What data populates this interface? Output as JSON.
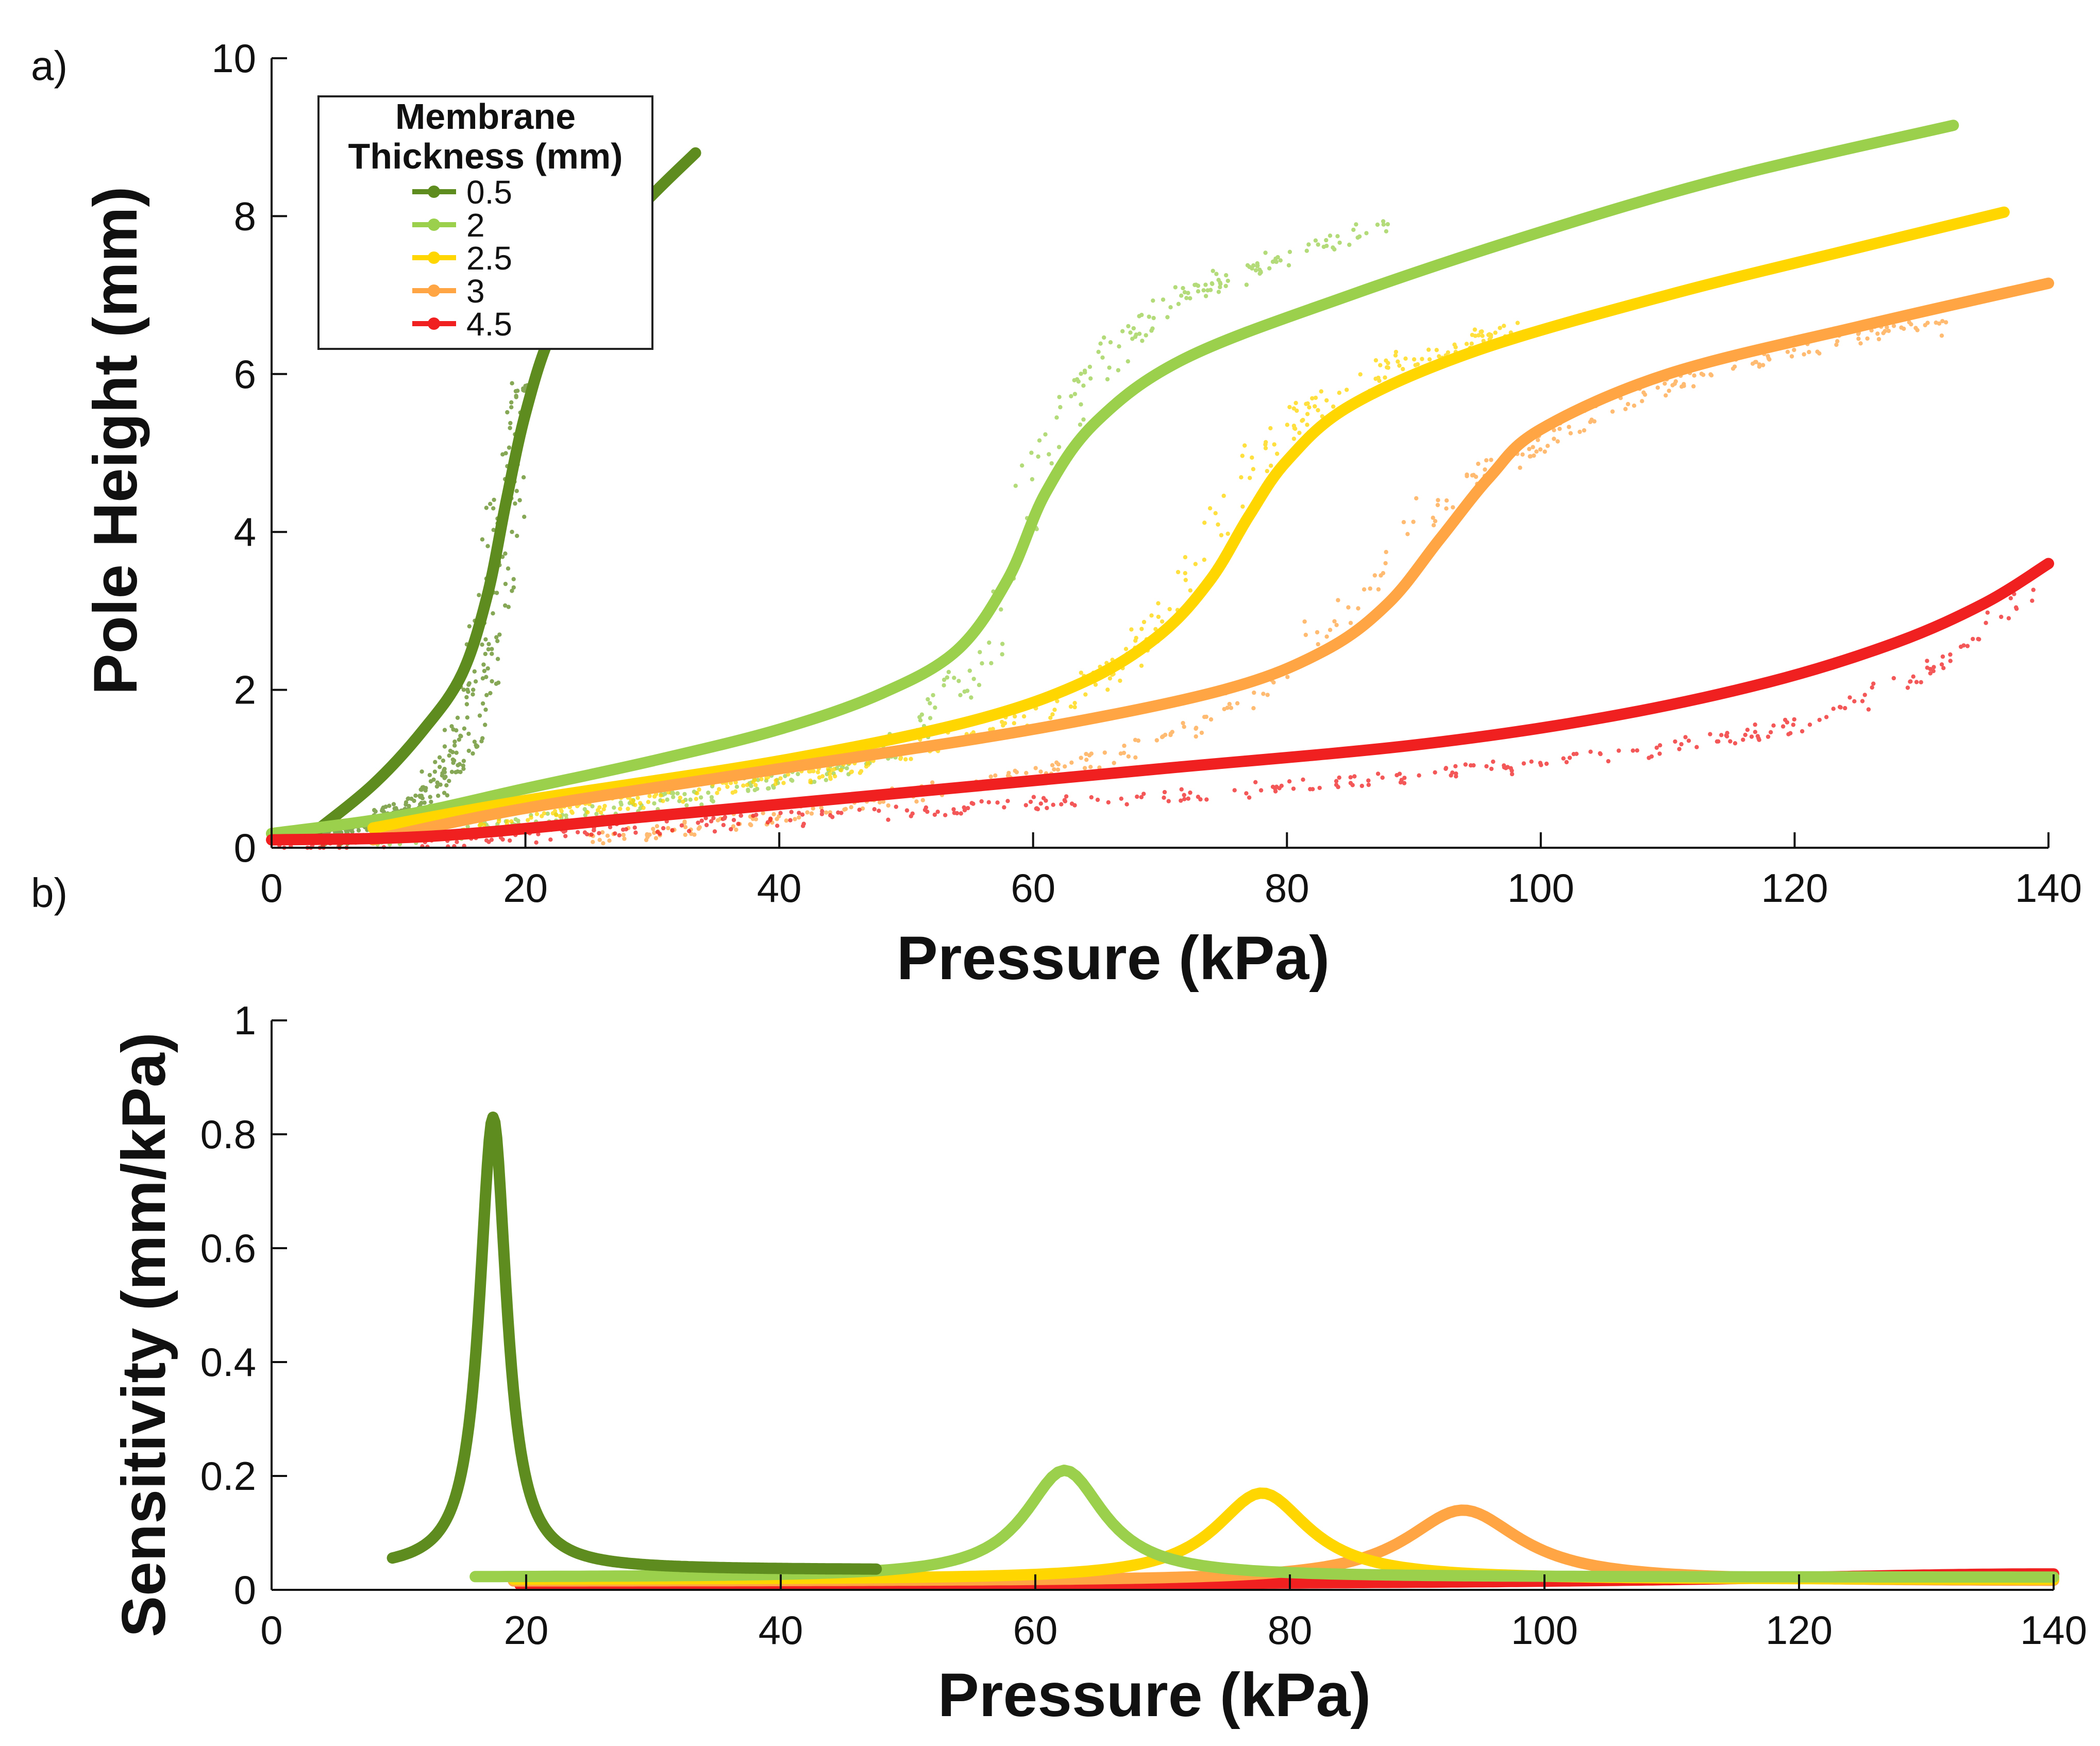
{
  "chart_data": [
    {
      "panel": "a)",
      "type": "line",
      "xlabel": "Pressure (kPa)",
      "ylabel": "Pole Height (mm)",
      "xlim": [
        0,
        140
      ],
      "ylim": [
        0,
        10
      ],
      "xticks": [
        "0",
        "20",
        "40",
        "60",
        "80",
        "100",
        "120",
        "140"
      ],
      "yticks": [
        "0",
        "2",
        "4",
        "6",
        "8",
        "10"
      ],
      "legend": {
        "title_line1": "Membrane",
        "title_line2": "Thickness (mm)",
        "position": "top-left"
      },
      "series": [
        {
          "name": "0.5",
          "color": "#5e8c1e",
          "model": {
            "x": [
              3,
              8,
              12,
              15,
              17,
              18.5,
              20,
              22,
              25,
              29,
              33.4
            ],
            "y": [
              0.15,
              0.8,
              1.5,
              2.2,
              3.2,
              4.4,
              5.5,
              6.5,
              7.3,
              8.1,
              8.8
            ]
          },
          "measured": {
            "x": [
              4,
              8,
              12,
              14,
              15.5,
              16.5,
              17.5,
              18.2,
              19,
              19.6,
              20.3
            ],
            "y": [
              0.1,
              0.3,
              0.6,
              1.0,
              1.6,
              2.3,
              3.2,
              4.0,
              4.8,
              5.3,
              5.8
            ]
          }
        },
        {
          "name": "2",
          "color": "#9bd04d",
          "model": {
            "x": [
              0,
              10,
              20,
              30,
              40,
              48,
              54,
              58,
              61,
              65,
              72,
              85,
              100,
              115,
              132.5
            ],
            "y": [
              0.18,
              0.4,
              0.75,
              1.1,
              1.5,
              1.95,
              2.5,
              3.4,
              4.5,
              5.4,
              6.2,
              7.0,
              7.8,
              8.5,
              9.15
            ]
          },
          "measured": {
            "x": [
              8,
              20,
              35,
              45,
              52,
              56,
              58,
              60,
              63,
              67,
              72,
              80,
              88
            ],
            "y": [
              0.1,
              0.3,
              0.7,
              1.0,
              1.6,
              2.4,
              3.5,
              4.6,
              5.7,
              6.4,
              7.0,
              7.5,
              7.9
            ]
          }
        },
        {
          "name": "2.5",
          "color": "#ffd600",
          "model": {
            "x": [
              8,
              20,
              40,
              55,
              64,
              70,
              74,
              77,
              80,
              85,
              95,
              110,
              125,
              136.5
            ],
            "y": [
              0.25,
              0.6,
              1.1,
              1.6,
              2.1,
              2.7,
              3.4,
              4.2,
              4.9,
              5.6,
              6.3,
              7.0,
              7.6,
              8.05
            ]
          },
          "measured": {
            "x": [
              15,
              30,
              45,
              55,
              63,
              68,
              72,
              75,
              78,
              82,
              88,
              94,
              99
            ],
            "y": [
              0.3,
              0.6,
              1.0,
              1.4,
              1.9,
              2.5,
              3.2,
              4.1,
              5.0,
              5.6,
              6.1,
              6.4,
              6.6
            ]
          }
        },
        {
          "name": "3",
          "color": "#ffa544",
          "model": {
            "x": [
              8,
              20,
              40,
              60,
              75,
              83,
              88,
              92,
              96,
              100,
              110,
              125,
              140
            ],
            "y": [
              0.1,
              0.5,
              1.0,
              1.5,
              2.0,
              2.5,
              3.1,
              3.9,
              4.7,
              5.3,
              6.0,
              6.6,
              7.15
            ]
          },
          "measured": {
            "x": [
              25,
              40,
              55,
              65,
              72,
              78,
              83,
              88,
              92,
              98,
              105,
              115,
              125,
              132
            ],
            "y": [
              0.1,
              0.4,
              0.8,
              1.1,
              1.5,
              2.0,
              2.8,
              3.6,
              4.4,
              5.0,
              5.6,
              6.1,
              6.5,
              6.6
            ]
          }
        },
        {
          "name": "4.5",
          "color": "#f02020",
          "model": {
            "x": [
              0,
              13,
              30,
              50,
              70,
              90,
              105,
              118,
              128,
              135,
              140
            ],
            "y": [
              0.1,
              0.15,
              0.4,
              0.7,
              1.0,
              1.3,
              1.65,
              2.1,
              2.6,
              3.1,
              3.6
            ]
          },
          "measured": {
            "x": [
              0,
              15,
              30,
              45,
              60,
              75,
              90,
              105,
              120,
              130,
              139
            ],
            "y": [
              0.05,
              0.1,
              0.25,
              0.4,
              0.55,
              0.7,
              0.9,
              1.15,
              1.55,
              2.2,
              3.2
            ]
          }
        }
      ]
    },
    {
      "panel": "b)",
      "type": "line",
      "xlabel": "Pressure (kPa)",
      "ylabel": "Sensitivity (mm/kPa)",
      "xlim": [
        0,
        140
      ],
      "ylim": [
        0,
        1
      ],
      "xticks": [
        "0",
        "20",
        "40",
        "60",
        "80",
        "100",
        "120",
        "140"
      ],
      "yticks": [
        "0",
        "0.2",
        "0.4",
        "0.6",
        "0.8",
        "1"
      ],
      "series": [
        {
          "name": "0.5",
          "color": "#5e8c1e",
          "peak_x": 17.4,
          "peak_y": 0.83,
          "base": 0.035,
          "halfwidth": 1.3,
          "xrange": [
            9.5,
            47.5
          ]
        },
        {
          "name": "2",
          "color": "#9bd04d",
          "peak_x": 62.3,
          "peak_y": 0.21,
          "base": 0.022,
          "halfwidth": 3.8,
          "xrange": [
            16,
            140
          ]
        },
        {
          "name": "2.5",
          "color": "#ffd600",
          "peak_x": 77.8,
          "peak_y": 0.17,
          "base": 0.018,
          "halfwidth": 4.5,
          "xrange": [
            19,
            140
          ]
        },
        {
          "name": "3",
          "color": "#ffa544",
          "peak_x": 93.6,
          "peak_y": 0.14,
          "base": 0.015,
          "halfwidth": 5.5,
          "xrange": [
            19,
            140
          ]
        },
        {
          "name": "4.5",
          "color": "#f02020",
          "peak_x": 140,
          "peak_y": 0.028,
          "base": 0.008,
          "halfwidth": 30,
          "xrange": [
            19.5,
            140
          ]
        }
      ]
    }
  ]
}
